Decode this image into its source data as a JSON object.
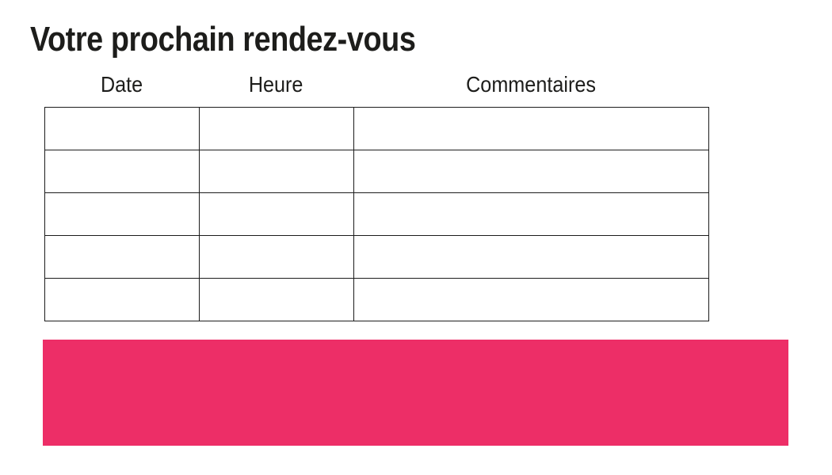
{
  "page": {
    "title": "Votre prochain rendez-vous",
    "background_color": "#ffffff",
    "text_color": "#1d1d1b"
  },
  "table": {
    "columns": [
      {
        "label": "Date"
      },
      {
        "label": "Heure"
      },
      {
        "label": "Commentaires"
      }
    ],
    "row_count": 5,
    "cell_values": [
      [
        "",
        "",
        ""
      ],
      [
        "",
        "",
        ""
      ],
      [
        "",
        "",
        ""
      ],
      [
        "",
        "",
        ""
      ],
      [
        "",
        "",
        ""
      ]
    ],
    "border_color": "#1c1c1c"
  },
  "accent_block": {
    "color": "#ed2e67"
  }
}
